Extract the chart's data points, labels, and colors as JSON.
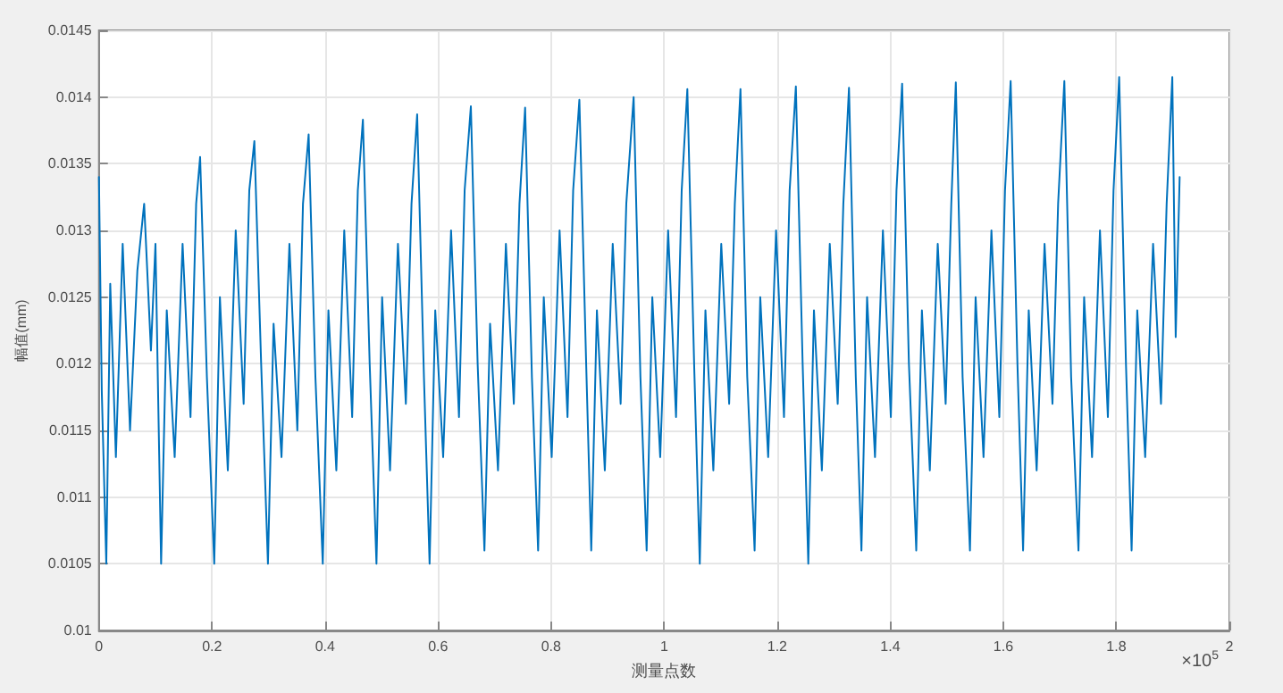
{
  "chart_data": {
    "type": "line",
    "xlabel": "测量点数",
    "ylabel": "幅值(mm)",
    "annotations": [
      "×10$^{5}$"
    ],
    "color": "#0072bd",
    "grid": true,
    "line_style": "solid",
    "marker": "none",
    "xlim": [
      0,
      2
    ],
    "xticks": [
      0,
      0.2,
      0.4,
      0.6,
      0.8,
      1,
      1.2,
      1.4,
      1.6,
      1.8,
      2
    ],
    "ylim": [
      0.01,
      0.0145
    ],
    "yticks": [
      0.01,
      0.0105,
      0.011,
      0.0115,
      0.012,
      0.0125,
      0.013,
      0.0135,
      0.014,
      0.0145
    ],
    "x": [
      0,
      0.005,
      0.013,
      0.02,
      0.03,
      0.042,
      0.055,
      0.068,
      0.08,
      0.092,
      0.1,
      0.11,
      0.12,
      0.134,
      0.148,
      0.162,
      0.172,
      0.179,
      0.191,
      0.204,
      0.214,
      0.228,
      0.242,
      0.256,
      0.266,
      0.275,
      0.287,
      0.299,
      0.309,
      0.323,
      0.337,
      0.351,
      0.361,
      0.371,
      0.383,
      0.396,
      0.406,
      0.42,
      0.434,
      0.448,
      0.458,
      0.467,
      0.479,
      0.491,
      0.501,
      0.515,
      0.529,
      0.543,
      0.553,
      0.563,
      0.575,
      0.585,
      0.595,
      0.609,
      0.623,
      0.637,
      0.647,
      0.658,
      0.67,
      0.682,
      0.692,
      0.706,
      0.72,
      0.734,
      0.744,
      0.754,
      0.766,
      0.777,
      0.787,
      0.801,
      0.815,
      0.829,
      0.839,
      0.85,
      0.862,
      0.871,
      0.881,
      0.895,
      0.909,
      0.923,
      0.933,
      0.946,
      0.958,
      0.969,
      0.979,
      0.993,
      1.007,
      1.021,
      1.031,
      1.041,
      1.053,
      1.063,
      1.073,
      1.087,
      1.101,
      1.115,
      1.125,
      1.135,
      1.147,
      1.16,
      1.17,
      1.184,
      1.198,
      1.212,
      1.222,
      1.233,
      1.245,
      1.255,
      1.265,
      1.279,
      1.293,
      1.307,
      1.317,
      1.327,
      1.339,
      1.349,
      1.359,
      1.373,
      1.387,
      1.401,
      1.411,
      1.421,
      1.433,
      1.446,
      1.456,
      1.47,
      1.484,
      1.498,
      1.508,
      1.516,
      1.528,
      1.541,
      1.551,
      1.565,
      1.579,
      1.593,
      1.603,
      1.613,
      1.625,
      1.635,
      1.645,
      1.659,
      1.673,
      1.687,
      1.697,
      1.708,
      1.72,
      1.733,
      1.743,
      1.757,
      1.771,
      1.785,
      1.795,
      1.805,
      1.817,
      1.827,
      1.837,
      1.851,
      1.865,
      1.879,
      1.889,
      1.899,
      1.905,
      1.912
    ],
    "values": [
      0.0134,
      0.0118,
      0.0105,
      0.0126,
      0.0113,
      0.0129,
      0.0115,
      0.0127,
      0.0132,
      0.0121,
      0.0129,
      0.0105,
      0.0124,
      0.0113,
      0.0129,
      0.0116,
      0.0132,
      0.01355,
      0.0119,
      0.0105,
      0.0125,
      0.0112,
      0.013,
      0.0117,
      0.0133,
      0.01367,
      0.012,
      0.0105,
      0.0123,
      0.0113,
      0.0129,
      0.0115,
      0.0132,
      0.01372,
      0.0119,
      0.0105,
      0.0124,
      0.0112,
      0.013,
      0.0116,
      0.0133,
      0.01383,
      0.012,
      0.0105,
      0.0125,
      0.0112,
      0.0129,
      0.0117,
      0.0132,
      0.01387,
      0.0119,
      0.0105,
      0.0124,
      0.0113,
      0.013,
      0.0116,
      0.0133,
      0.01393,
      0.012,
      0.0106,
      0.0123,
      0.0112,
      0.0129,
      0.0117,
      0.0132,
      0.01392,
      0.0119,
      0.0106,
      0.0125,
      0.0113,
      0.013,
      0.0116,
      0.0133,
      0.01398,
      0.012,
      0.0106,
      0.0124,
      0.0112,
      0.0129,
      0.0117,
      0.0132,
      0.014,
      0.0119,
      0.0106,
      0.0125,
      0.0113,
      0.013,
      0.0116,
      0.0133,
      0.01406,
      0.012,
      0.0105,
      0.0124,
      0.0112,
      0.0129,
      0.0117,
      0.0132,
      0.01406,
      0.0119,
      0.0106,
      0.0125,
      0.0113,
      0.013,
      0.0116,
      0.0133,
      0.01408,
      0.012,
      0.0105,
      0.0124,
      0.0112,
      0.0129,
      0.0117,
      0.0132,
      0.01407,
      0.0119,
      0.0106,
      0.0125,
      0.0113,
      0.013,
      0.0116,
      0.0133,
      0.0141,
      0.012,
      0.0106,
      0.0124,
      0.0112,
      0.0129,
      0.0117,
      0.0132,
      0.01411,
      0.0119,
      0.0106,
      0.0125,
      0.0113,
      0.013,
      0.0116,
      0.0133,
      0.01412,
      0.012,
      0.0106,
      0.0124,
      0.0112,
      0.0129,
      0.0117,
      0.0132,
      0.01412,
      0.0119,
      0.0106,
      0.0125,
      0.0113,
      0.013,
      0.0116,
      0.0133,
      0.01415,
      0.012,
      0.0106,
      0.0124,
      0.0113,
      0.0129,
      0.0117,
      0.0132,
      0.01415,
      0.0122,
      0.0134
    ]
  }
}
